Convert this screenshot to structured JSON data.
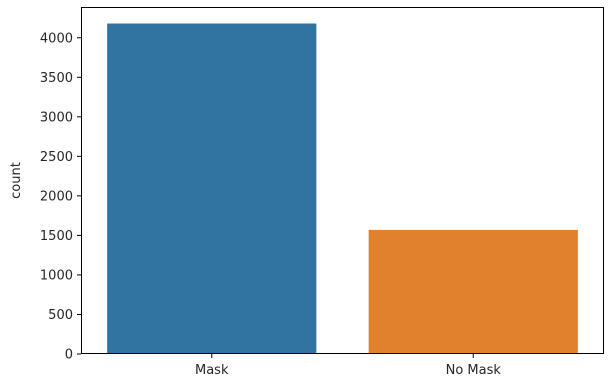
{
  "chart_data": {
    "type": "bar",
    "categories": [
      "Mask",
      "No Mask"
    ],
    "values": [
      4180,
      1570
    ],
    "title": "",
    "xlabel": "",
    "ylabel": "count",
    "ylim": [
      0,
      4389
    ],
    "yticks": [
      0,
      500,
      1000,
      1500,
      2000,
      2500,
      3000,
      3500,
      4000
    ],
    "grid": false,
    "legend": "none",
    "colors": [
      "#3274a1",
      "#e1812c"
    ]
  }
}
